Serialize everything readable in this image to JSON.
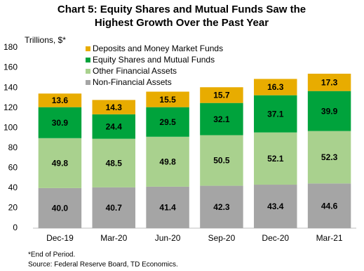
{
  "chart_data": {
    "type": "stacked_bar",
    "title": [
      "Chart 5: Equity Shares and Mutual Funds Saw the",
      "Highest Growth Over the Past Year"
    ],
    "y_label": "Trillions, $*",
    "categories": [
      "Dec-19",
      "Mar-20",
      "Jun-20",
      "Sep-20",
      "Dec-20",
      "Mar-21"
    ],
    "series": [
      {
        "name": "Non-Financial Assets",
        "color": "#a5a5a5",
        "values": [
          40.0,
          40.7,
          41.4,
          42.3,
          43.4,
          44.6
        ],
        "value_labels": [
          "40.0",
          "40.7",
          "41.4",
          "42.3",
          "43.4",
          "44.6"
        ]
      },
      {
        "name": "Other Financial Assets",
        "color": "#a9d18e",
        "values": [
          49.8,
          48.5,
          49.8,
          50.5,
          52.1,
          52.3
        ]
      },
      {
        "name": "Equity Shares and Mutual Funds",
        "color": "#00a33c",
        "values": [
          30.9,
          24.4,
          29.5,
          32.1,
          37.1,
          39.9
        ]
      },
      {
        "name": "Deposits and Money Market Funds",
        "color": "#e8ac00",
        "values": [
          13.6,
          14.3,
          15.5,
          15.7,
          16.3,
          17.3
        ]
      }
    ],
    "ylim": [
      0,
      180
    ],
    "yticks": [
      0,
      20,
      40,
      60,
      80,
      100,
      120,
      140,
      160,
      180
    ],
    "legend": "upper-left",
    "footnotes": [
      "*End of Period.",
      "Source: Federal Reserve Board, TD Economics."
    ]
  }
}
